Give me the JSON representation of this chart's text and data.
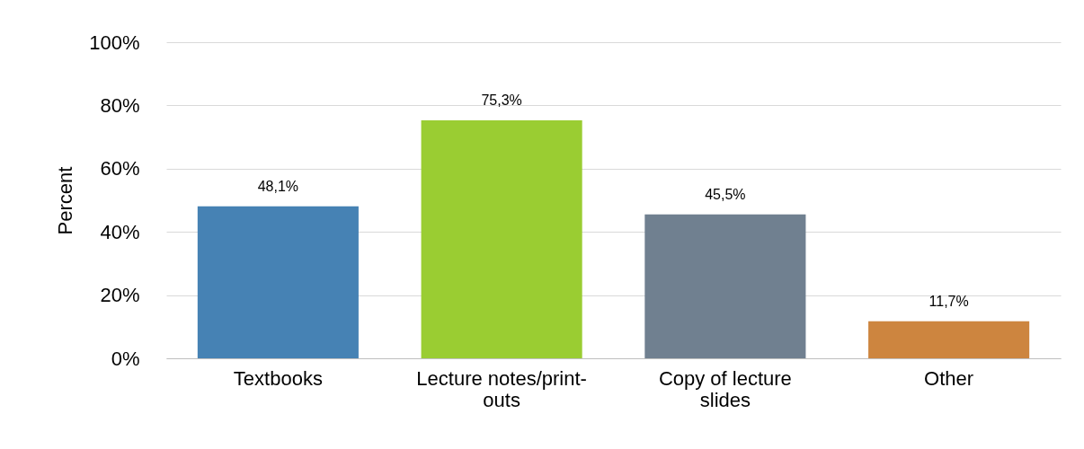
{
  "chart_data": {
    "type": "bar",
    "ylabel": "Percent",
    "categories": [
      "Textbooks",
      "Lecture notes/print-outs",
      "Copy of lecture slides",
      "Other"
    ],
    "values": [
      48.1,
      75.3,
      45.5,
      11.7
    ],
    "colors": [
      "#4682b4",
      "#9acd32",
      "#708090",
      "#cd853f"
    ],
    "value_labels": [
      "48,1%",
      "75,3%",
      "45,5%",
      "11,7%"
    ],
    "ylim": [
      0,
      100
    ],
    "yticks": [
      {
        "value": 0,
        "label": "0%"
      },
      {
        "value": 20,
        "label": "20%"
      },
      {
        "value": 40,
        "label": "40%"
      },
      {
        "value": 60,
        "label": "60%"
      },
      {
        "value": 80,
        "label": "80%"
      },
      {
        "value": 100,
        "label": "100%"
      }
    ],
    "grid": "y"
  }
}
